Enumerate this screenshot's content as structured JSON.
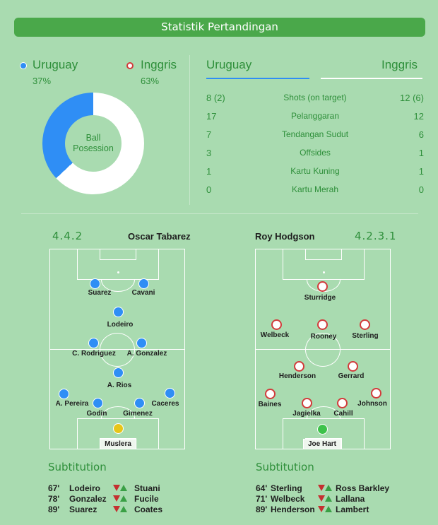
{
  "header": {
    "title": "Statistik Pertandingan"
  },
  "possession": {
    "home": {
      "name": "Uruguay",
      "pct": "37%",
      "value": 37
    },
    "away": {
      "name": "Inggris",
      "pct": "63%",
      "value": 63
    },
    "center_label": "Ball\nPosession",
    "colors": {
      "home": "#2f8ef5",
      "away": "#ffffff"
    }
  },
  "stats": {
    "home_team": "Uruguay",
    "away_team": "Inggris",
    "rows": [
      {
        "home": "8 (2)",
        "label": "Shots (on target)",
        "away": "12 (6)"
      },
      {
        "home": "17",
        "label": "Pelanggaran",
        "away": "12"
      },
      {
        "home": "7",
        "label": "Tendangan Sudut",
        "away": "6"
      },
      {
        "home": "3",
        "label": "Offsides",
        "away": "1"
      },
      {
        "home": "1",
        "label": "Kartu Kuning",
        "away": "1"
      },
      {
        "home": "0",
        "label": "Kartu Merah",
        "away": "0"
      }
    ]
  },
  "lineups": {
    "home": {
      "formation": "4.4.2",
      "coach": "Oscar Tabarez",
      "players": [
        "Suarez",
        "Cavani",
        "Lodeiro",
        "C. Rodriguez",
        "A. Gonzalez",
        "A. Rios",
        "A. Pereira",
        "Godin",
        "Gimenez",
        "Caceres",
        "Muslera"
      ]
    },
    "away": {
      "formation": "4.2.3.1",
      "coach": "Roy Hodgson",
      "players": [
        "Sturridge",
        "Welbeck",
        "Rooney",
        "Sterling",
        "Henderson",
        "Gerrard",
        "Baines",
        "Jagielka",
        "Cahill",
        "Johnson",
        "Joe Hart"
      ]
    }
  },
  "substitutions": {
    "title": "Subtitution",
    "home": [
      {
        "minute": "67'",
        "out": "Lodeiro",
        "in": "Stuani"
      },
      {
        "minute": "78'",
        "out": "Gonzalez",
        "in": "Fucile"
      },
      {
        "minute": "89'",
        "out": "Suarez",
        "in": "Coates"
      }
    ],
    "away": [
      {
        "minute": "64'",
        "out": "Sterling",
        "in": "Ross Barkley"
      },
      {
        "minute": "71'",
        "out": "Welbeck",
        "in": "Lallana"
      },
      {
        "minute": "89'",
        "out": "Henderson",
        "in": "Lambert"
      }
    ]
  }
}
